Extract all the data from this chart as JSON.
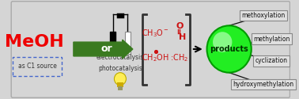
{
  "bg_color": "#d5d5d5",
  "meoh_color": "#ee0000",
  "meoh_text": "MeOH",
  "c1_text": "as C1 source",
  "c1_box_color": "#4466cc",
  "arrow_color": "#3a7a20",
  "arrow_label": "or",
  "electro_text": "electrocatalysis",
  "photo_text": "photocatalysis",
  "products_text": "products",
  "products_green": "#22ee22",
  "products_green_dark": "#009900",
  "products_green_light": "#aaffaa",
  "bracket_color": "#333333",
  "inter_color": "#cc1111",
  "labels": [
    "methoxylation",
    "methylation",
    "cyclization",
    "hydroxymethylation"
  ],
  "label_box_color": "#e0e0e0",
  "label_box_edge": "#888888",
  "line_color": "#111111"
}
